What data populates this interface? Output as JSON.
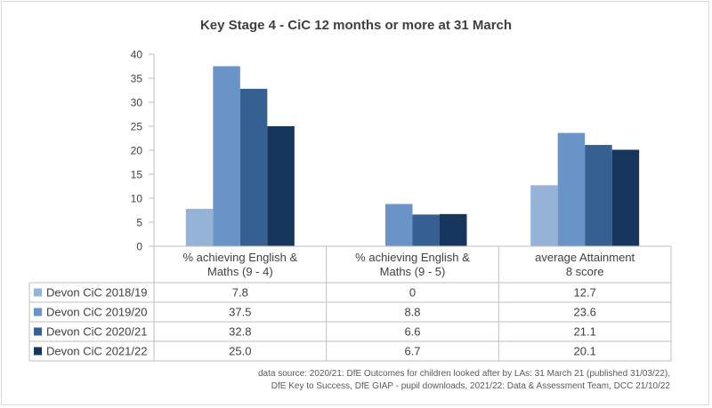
{
  "chart_data": {
    "type": "bar",
    "title": "Key Stage 4 - CiC 12 months or more at 31 March",
    "categories": [
      [
        "% achieving English &",
        "Maths  (9 - 4)"
      ],
      [
        "% achieving English &",
        "Maths  (9 - 5)"
      ],
      [
        "average Attainment",
        "8 score"
      ]
    ],
    "series": [
      {
        "name": "Devon CiC 2018/19",
        "color": "#95b3d7",
        "values": [
          7.8,
          0,
          12.7
        ],
        "labels": [
          "7.8",
          "0",
          "12.7"
        ]
      },
      {
        "name": "Devon CiC 2019/20",
        "color": "#6a94c8",
        "values": [
          37.5,
          8.8,
          23.6
        ],
        "labels": [
          "37.5",
          "8.8",
          "23.6"
        ]
      },
      {
        "name": "Devon CiC 2020/21",
        "color": "#376092",
        "values": [
          32.8,
          6.6,
          21.1
        ],
        "labels": [
          "32.8",
          "6.6",
          "21.1"
        ]
      },
      {
        "name": "Devon CiC 2021/22",
        "color": "#17365d",
        "values": [
          25.0,
          6.7,
          20.1
        ],
        "labels": [
          "25.0",
          "6.7",
          "20.1"
        ]
      }
    ],
    "ylim": [
      0,
      40
    ],
    "yticks": [
      0,
      5,
      10,
      15,
      20,
      25,
      30,
      35,
      40
    ],
    "grid": false,
    "legend": "data-table",
    "source": [
      "data source: 2020/21: DfE Outcomes for children looked after by LAs: 31 March 21 (published 31/03/22),",
      "DfE Key to Success, DfE GIAP - pupil downloads, 2021/22: Data & Assessment Team, DCC 21/10/22"
    ]
  }
}
